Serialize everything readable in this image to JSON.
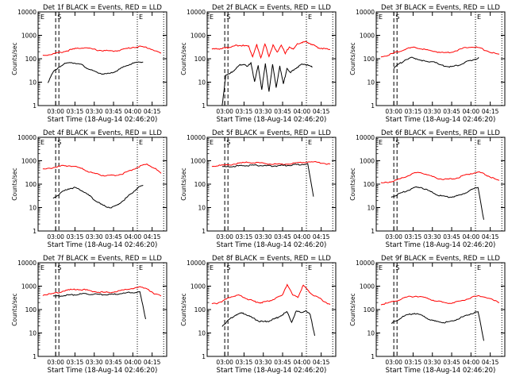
{
  "colors": {
    "events": "#000000",
    "lld": "#ff0000",
    "axis": "#000000",
    "background": "#ffffff"
  },
  "common": {
    "ylabel": "Counts/sec",
    "xlabel": "Start Time (18-Aug-14 02:46:20)",
    "xticks": [
      "03:00",
      "03:15",
      "03:30",
      "03:45",
      "04:00",
      "04:15"
    ],
    "yticks": [
      "1",
      "10",
      "100",
      "1000",
      "10000"
    ],
    "markers": [
      "E",
      "S",
      "E"
    ]
  },
  "chart_data": [
    {
      "type": "line",
      "title": "Det 1f BLACK = Events, RED = LLD",
      "yscale": "log",
      "ylim": [
        1,
        10000
      ],
      "series": [
        {
          "name": "LLD",
          "color": "#ff0000",
          "start": "02:50",
          "end": "04:22",
          "values": [
            140,
            150,
            175,
            200,
            240,
            280,
            300,
            260,
            230,
            220,
            210,
            230,
            270,
            310,
            330,
            300,
            230,
            170
          ]
        },
        {
          "name": "Events",
          "color": "#000000",
          "start": "02:54",
          "end": "04:08",
          "values": [
            10,
            28,
            45,
            60,
            70,
            65,
            55,
            40,
            30,
            25,
            22,
            23,
            28,
            38,
            50,
            62,
            70,
            75
          ]
        }
      ]
    },
    {
      "type": "line",
      "title": "Det 2f BLACK = Events, RED = LLD",
      "yscale": "log",
      "ylim": [
        1,
        10000
      ],
      "series": [
        {
          "name": "LLD",
          "color": "#ff0000",
          "start": "02:50",
          "end": "04:22",
          "values": [
            260,
            260,
            270,
            280,
            300,
            330,
            370,
            380,
            350,
            360,
            120,
            400,
            110,
            420,
            130,
            380,
            180,
            400,
            160,
            340,
            250,
            420,
            500,
            520,
            450,
            380,
            300,
            280,
            260,
            260
          ]
        },
        {
          "name": "Events",
          "color": "#000000",
          "start": "02:58",
          "end": "04:08",
          "values": [
            1,
            20,
            22,
            30,
            40,
            55,
            60,
            45,
            70,
            10,
            50,
            5,
            60,
            4,
            55,
            6,
            50,
            8,
            40,
            25,
            35,
            45,
            55,
            60,
            50,
            45
          ]
        }
      ]
    },
    {
      "type": "line",
      "title": "Det 3f BLACK = Events, RED = LLD",
      "yscale": "log",
      "ylim": [
        1,
        10000
      ],
      "series": [
        {
          "name": "LLD",
          "color": "#ff0000",
          "start": "02:50",
          "end": "04:22",
          "values": [
            120,
            140,
            180,
            230,
            280,
            300,
            260,
            220,
            200,
            180,
            190,
            230,
            290,
            330,
            300,
            230,
            180,
            150
          ]
        },
        {
          "name": "Events",
          "color": "#000000",
          "start": "03:00",
          "end": "04:06",
          "values": [
            40,
            60,
            90,
            110,
            100,
            85,
            70,
            80,
            55,
            50,
            45,
            50,
            60,
            75,
            90,
            110
          ]
        }
      ]
    },
    {
      "type": "line",
      "title": "Det 4f BLACK = Events, RED = LLD",
      "yscale": "log",
      "ylim": [
        1,
        10000
      ],
      "series": [
        {
          "name": "LLD",
          "color": "#ff0000",
          "start": "02:50",
          "end": "04:22",
          "values": [
            420,
            470,
            540,
            600,
            610,
            560,
            450,
            340,
            280,
            240,
            230,
            240,
            270,
            340,
            460,
            620,
            700,
            480,
            280
          ]
        },
        {
          "name": "Events",
          "color": "#000000",
          "start": "02:58",
          "end": "04:08",
          "values": [
            25,
            35,
            50,
            65,
            70,
            60,
            45,
            30,
            20,
            14,
            11,
            10,
            12,
            18,
            28,
            45,
            70,
            90
          ]
        }
      ]
    },
    {
      "type": "line",
      "title": "Det 5f BLACK = Events, RED = LLD",
      "yscale": "log",
      "ylim": [
        1,
        10000
      ],
      "series": [
        {
          "name": "LLD",
          "color": "#ff0000",
          "start": "02:50",
          "end": "04:22",
          "values": [
            600,
            620,
            650,
            720,
            800,
            850,
            820,
            760,
            720,
            700,
            720,
            780,
            850,
            900,
            870,
            800,
            700
          ]
        },
        {
          "name": "Events",
          "color": "#000000",
          "start": "02:58",
          "end": "04:09",
          "values": [
            540,
            560,
            580,
            600,
            620,
            640,
            640,
            620,
            610,
            600,
            610,
            630,
            650,
            680,
            700,
            720,
            30
          ]
        }
      ]
    },
    {
      "type": "line",
      "title": "Det 6f BLACK = Events, RED = LLD",
      "yscale": "log",
      "ylim": [
        1,
        10000
      ],
      "series": [
        {
          "name": "LLD",
          "color": "#ff0000",
          "start": "02:50",
          "end": "04:22",
          "values": [
            110,
            120,
            140,
            170,
            220,
            290,
            310,
            260,
            200,
            170,
            160,
            170,
            200,
            250,
            300,
            320,
            250,
            180,
            140
          ]
        },
        {
          "name": "Events",
          "color": "#000000",
          "start": "02:58",
          "end": "04:10",
          "values": [
            28,
            35,
            45,
            55,
            70,
            75,
            60,
            45,
            35,
            30,
            28,
            30,
            35,
            45,
            60,
            75,
            3
          ]
        }
      ]
    },
    {
      "type": "line",
      "title": "Det 7f BLACK = Events, RED = LLD",
      "yscale": "log",
      "ylim": [
        1,
        10000
      ],
      "series": [
        {
          "name": "LLD",
          "color": "#ff0000",
          "start": "02:50",
          "end": "04:22",
          "values": [
            420,
            450,
            520,
            620,
            700,
            740,
            700,
            620,
            560,
            540,
            560,
            620,
            720,
            820,
            900,
            800,
            450,
            400
          ]
        },
        {
          "name": "Events",
          "color": "#000000",
          "start": "02:58",
          "end": "04:10",
          "values": [
            360,
            380,
            400,
            420,
            440,
            460,
            460,
            450,
            440,
            430,
            440,
            460,
            490,
            520,
            540,
            560,
            40
          ]
        }
      ]
    },
    {
      "type": "line",
      "title": "Det 8f BLACK = Events, RED = LLD",
      "yscale": "log",
      "ylim": [
        1,
        10000
      ],
      "series": [
        {
          "name": "LLD",
          "color": "#ff0000",
          "start": "02:50",
          "end": "04:22",
          "values": [
            170,
            190,
            230,
            300,
            380,
            400,
            330,
            260,
            220,
            200,
            210,
            250,
            320,
            380,
            1200,
            420,
            350,
            1100,
            600,
            400,
            300,
            220,
            160
          ]
        },
        {
          "name": "Events",
          "color": "#000000",
          "start": "02:58",
          "end": "04:10",
          "values": [
            20,
            30,
            45,
            60,
            70,
            65,
            50,
            40,
            32,
            30,
            32,
            38,
            45,
            60,
            80,
            30,
            85,
            75,
            90,
            60,
            8
          ]
        }
      ]
    },
    {
      "type": "line",
      "title": "Det 9f BLACK = Events, RED = LLD",
      "yscale": "log",
      "ylim": [
        1,
        10000
      ],
      "series": [
        {
          "name": "LLD",
          "color": "#ff0000",
          "start": "02:50",
          "end": "04:22",
          "values": [
            170,
            190,
            230,
            290,
            350,
            380,
            340,
            280,
            230,
            200,
            190,
            210,
            260,
            330,
            380,
            340,
            260,
            200
          ]
        },
        {
          "name": "Events",
          "color": "#000000",
          "start": "02:58",
          "end": "04:10",
          "values": [
            25,
            35,
            50,
            60,
            70,
            60,
            45,
            35,
            30,
            28,
            30,
            35,
            45,
            55,
            70,
            80,
            5
          ]
        }
      ]
    }
  ]
}
